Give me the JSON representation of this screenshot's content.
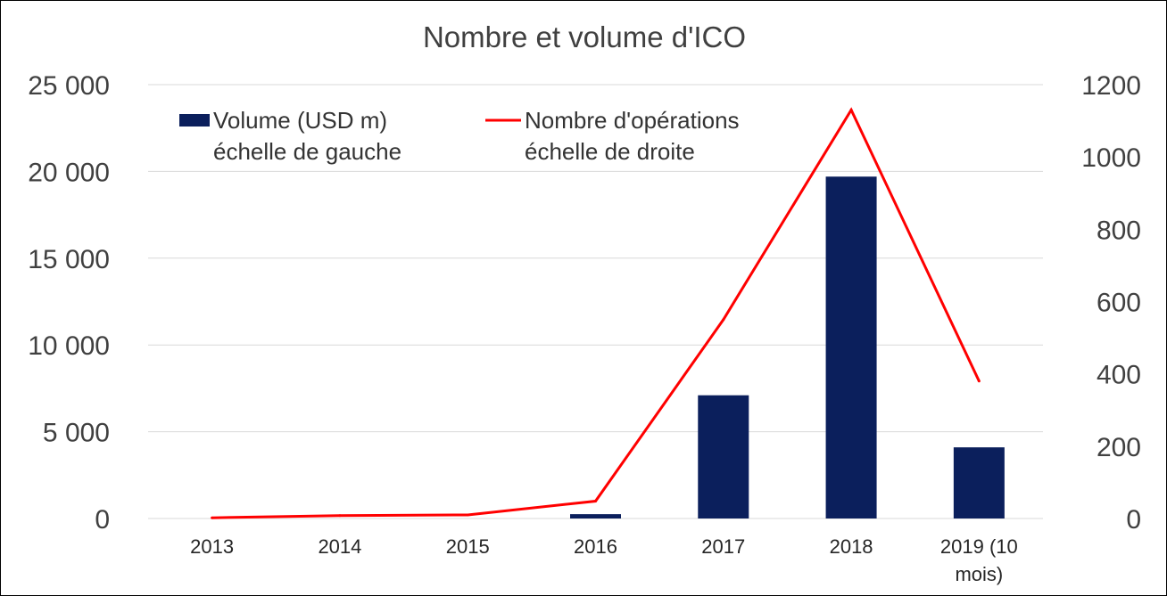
{
  "chart_data": {
    "type": "bar",
    "title": "Nombre et volume d'ICO",
    "categories": [
      "2013",
      "2014",
      "2015",
      "2016",
      "2017",
      "2018",
      "2019 (10 mois)"
    ],
    "category_lines": [
      [
        "2013"
      ],
      [
        "2014"
      ],
      [
        "2015"
      ],
      [
        "2016"
      ],
      [
        "2017"
      ],
      [
        "2018"
      ],
      [
        "2019 (10",
        "mois)"
      ]
    ],
    "series": [
      {
        "name": "Volume (USD m) échelle de gauche",
        "legend_lines": [
          "Volume (USD m)",
          "échelle de gauche"
        ],
        "kind": "bar",
        "axis": "left",
        "color": "#0b1f5c",
        "values": [
          0,
          0,
          0,
          250,
          7100,
          19700,
          4100
        ]
      },
      {
        "name": "Nombre d'opérations échelle de droite",
        "legend_lines": [
          "Nombre d'opérations",
          "échelle de droite"
        ],
        "kind": "line",
        "axis": "right",
        "color": "#ff0000",
        "values": [
          2,
          8,
          10,
          48,
          550,
          1130,
          380
        ]
      }
    ],
    "y_left": {
      "ylim": [
        0,
        25000
      ],
      "ticks": [
        0,
        5000,
        10000,
        15000,
        20000,
        25000
      ],
      "tick_labels": [
        "0",
        "5 000",
        "10 000",
        "15 000",
        "20 000",
        "25 000"
      ]
    },
    "y_right": {
      "ylim": [
        0,
        1200
      ],
      "ticks": [
        0,
        200,
        400,
        600,
        800,
        1000,
        1200
      ],
      "tick_labels": [
        "0",
        "200",
        "400",
        "600",
        "800",
        "1000",
        "1200"
      ]
    },
    "grid": true,
    "legend_position": "top-left"
  }
}
